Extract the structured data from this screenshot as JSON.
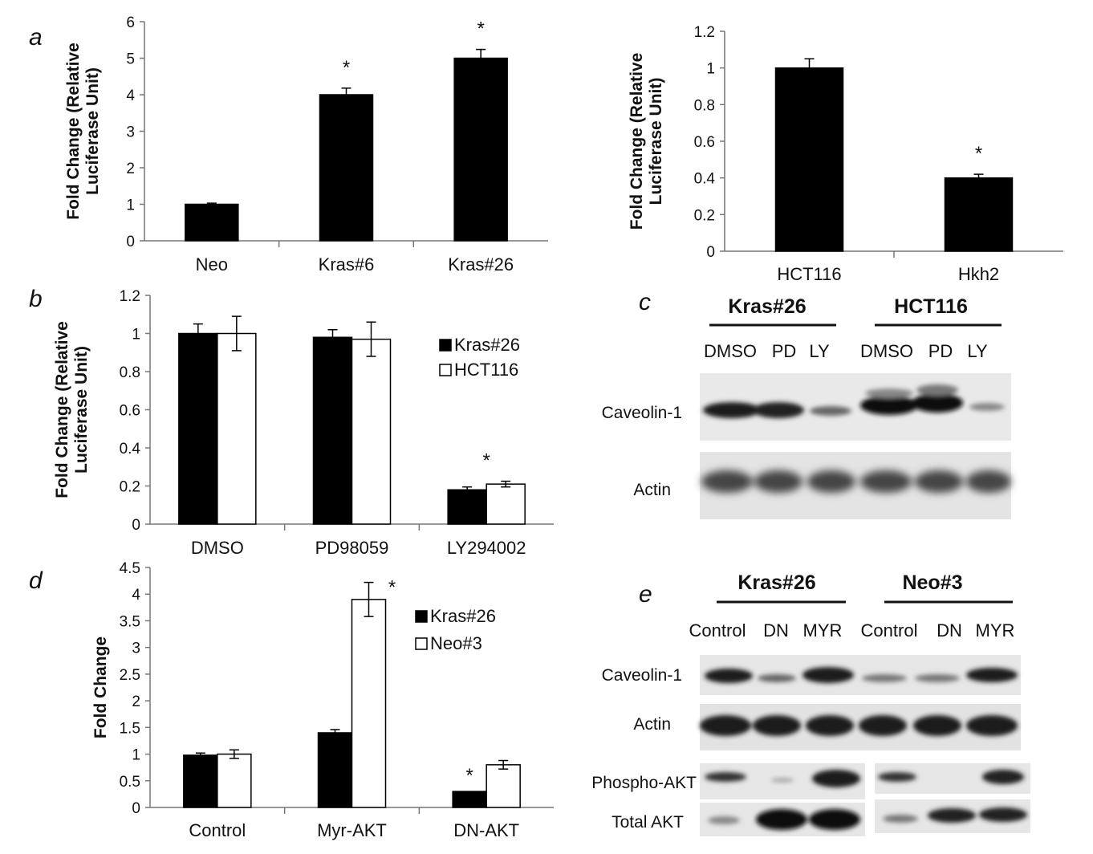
{
  "panels": {
    "a": "a",
    "b": "b",
    "c": "c",
    "d": "d",
    "e": "e"
  },
  "chart_data": [
    {
      "id": "a-left",
      "type": "bar",
      "ylabel": [
        "Fold Change (Relative",
        "Luciferase Unit)"
      ],
      "ylim": [
        0,
        6
      ],
      "yticks": [
        "0",
        "1",
        "2",
        "3",
        "4",
        "5",
        "6"
      ],
      "categories": [
        "Neo",
        "Kras#6",
        "Kras#26"
      ],
      "series": [
        {
          "values": [
            1.0,
            4.0,
            5.0
          ],
          "errors": [
            0.03,
            0.18,
            0.24
          ],
          "color": "#000000"
        }
      ],
      "significance": [
        false,
        true,
        true
      ]
    },
    {
      "id": "a-right",
      "type": "bar",
      "ylabel": [
        "Fold Change (Relative",
        "Luciferase Unit)"
      ],
      "ylim": [
        0,
        1.2
      ],
      "yticks": [
        "0",
        "0.2",
        "0.4",
        "0.6",
        "0.8",
        "1",
        "1.2"
      ],
      "categories": [
        "HCT116",
        "Hkh2"
      ],
      "series": [
        {
          "values": [
            1.0,
            0.4
          ],
          "errors": [
            0.05,
            0.02
          ],
          "color": "#000000"
        }
      ],
      "significance": [
        false,
        true
      ]
    },
    {
      "id": "b",
      "type": "bar",
      "ylabel": [
        "Fold Change (Relative",
        "Luciferase Unit)"
      ],
      "ylim": [
        0,
        1.2
      ],
      "yticks": [
        "0",
        "0.2",
        "0.4",
        "0.6",
        "0.8",
        "1",
        "1.2"
      ],
      "categories": [
        "DMSO",
        "PD98059",
        "LY294002"
      ],
      "series": [
        {
          "name": "Kras#26",
          "values": [
            1.0,
            0.98,
            0.18
          ],
          "errors": [
            0.05,
            0.04,
            0.015
          ],
          "color": "#000000"
        },
        {
          "name": "HCT116",
          "values": [
            1.0,
            0.97,
            0.21
          ],
          "errors": [
            0.09,
            0.09,
            0.015
          ],
          "color": "#ffffff"
        }
      ],
      "significance": [
        false,
        false,
        true
      ],
      "legend": "right"
    },
    {
      "id": "d",
      "type": "bar",
      "ylabel": [
        "Fold Change"
      ],
      "ylim": [
        0,
        4.5
      ],
      "yticks": [
        "0",
        "0.5",
        "1",
        "1.5",
        "2",
        "2.5",
        "3",
        "3.5",
        "4",
        "4.5"
      ],
      "categories": [
        "Control",
        "Myr-AKT",
        "DN-AKT"
      ],
      "series": [
        {
          "name": "Kras#26",
          "values": [
            0.98,
            1.4,
            0.3
          ],
          "errors": [
            0.04,
            0.06,
            0.0
          ],
          "color": "#000000"
        },
        {
          "name": "Neo#3",
          "values": [
            1.0,
            3.9,
            0.8
          ],
          "errors": [
            0.08,
            0.32,
            0.08
          ],
          "color": "#ffffff"
        }
      ],
      "stars": [
        {
          "category": 1,
          "series": 1
        },
        {
          "category": 2,
          "series": 0
        }
      ],
      "legend": "right"
    }
  ],
  "blot_c": {
    "groups": [
      "Kras#26",
      "HCT116"
    ],
    "lanes": [
      "DMSO",
      "PD",
      "LY",
      "DMSO",
      "PD",
      "LY"
    ],
    "rows": [
      "Caveolin-1",
      "Actin"
    ]
  },
  "blot_e": {
    "groups": [
      "Kras#26",
      "Neo#3"
    ],
    "lanes": [
      "Control",
      "DN",
      "MYR",
      "Control",
      "DN",
      "MYR"
    ],
    "rows": [
      "Caveolin-1",
      "Actin",
      "Phospho-AKT",
      "Total AKT"
    ]
  }
}
